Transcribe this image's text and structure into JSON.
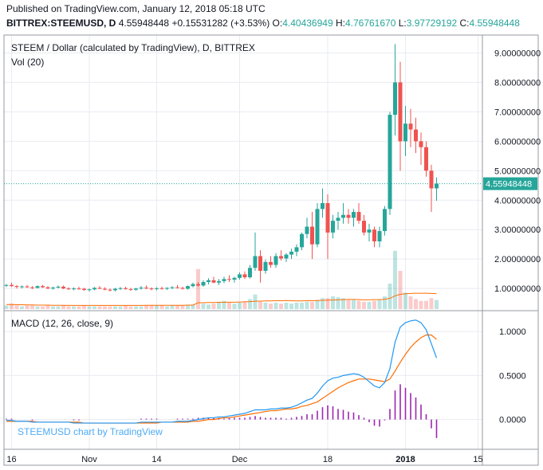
{
  "header": {
    "published": "Published on TradingView.com, January 12, 2018 05:18 UTC",
    "symbol": "BITTREX:STEEMUSD, D",
    "last": "4.55948448",
    "change": "+0.15531282 (+3.53%)",
    "open_label": "O:",
    "open": "4.40436949",
    "high_label": "H:",
    "high": "4.76761670",
    "low_label": "L:",
    "low": "3.97729192",
    "close_label": "C:",
    "close": "4.55948448"
  },
  "watermark": "STEEMUSD chart by TradingView",
  "colors": {
    "up": "#26a69a",
    "down": "#ef5350",
    "macd": "#2196f3",
    "signal": "#ff6d00",
    "hist": "#9c27b0"
  },
  "chart_data": [
    {
      "type": "candlestick",
      "title": "STEEM / Dollar (calculated by TradingView), D, BITTREX",
      "volume_label": "Vol (20)",
      "ylim": [
        0.3,
        9.5
      ],
      "y_ticks": [
        "9.00000000",
        "8.00000000",
        "7.00000000",
        "6.00000000",
        "5.00000000",
        "4.00000000",
        "3.00000000",
        "2.00000000",
        "1.00000000"
      ],
      "y_tick_values": [
        9,
        8,
        7,
        6,
        5,
        4,
        3,
        2,
        1
      ],
      "last_price": 4.55948448,
      "last_price_label": "4.55948448",
      "x_ticks": [
        "16",
        "Nov",
        "14",
        "Dec",
        "18",
        "2018",
        "15"
      ],
      "x_tick_index": [
        1,
        16,
        29,
        45,
        62,
        77,
        91
      ],
      "candles": [
        [
          1.1,
          1.15,
          1.05,
          1.12
        ],
        [
          1.12,
          1.2,
          1.05,
          1.08
        ],
        [
          1.08,
          1.12,
          1.0,
          1.05
        ],
        [
          1.05,
          1.1,
          1.0,
          1.07
        ],
        [
          1.07,
          1.12,
          1.02,
          1.04
        ],
        [
          1.04,
          1.08,
          0.98,
          1.02
        ],
        [
          1.02,
          1.1,
          1.0,
          1.08
        ],
        [
          1.08,
          1.12,
          1.02,
          1.04
        ],
        [
          1.04,
          1.08,
          0.98,
          1.0
        ],
        [
          1.0,
          1.06,
          0.96,
          1.03
        ],
        [
          1.03,
          1.1,
          1.0,
          1.06
        ],
        [
          1.06,
          1.1,
          0.98,
          1.0
        ],
        [
          1.0,
          1.04,
          0.95,
          0.98
        ],
        [
          0.98,
          1.04,
          0.94,
          1.0
        ],
        [
          1.0,
          1.06,
          0.96,
          0.99
        ],
        [
          0.99,
          1.02,
          0.92,
          0.95
        ],
        [
          0.95,
          1.0,
          0.9,
          0.97
        ],
        [
          0.97,
          1.05,
          0.94,
          1.02
        ],
        [
          1.02,
          1.08,
          0.98,
          0.99
        ],
        [
          0.99,
          1.04,
          0.94,
          0.96
        ],
        [
          0.96,
          1.0,
          0.9,
          0.94
        ],
        [
          0.94,
          1.02,
          0.9,
          0.99
        ],
        [
          0.99,
          1.05,
          0.95,
          1.01
        ],
        [
          1.01,
          1.06,
          0.96,
          0.98
        ],
        [
          0.98,
          1.02,
          0.92,
          0.96
        ],
        [
          0.96,
          1.02,
          0.92,
          1.0
        ],
        [
          1.0,
          1.08,
          0.96,
          1.03
        ],
        [
          1.03,
          1.1,
          0.98,
          1.0
        ],
        [
          1.0,
          1.04,
          0.94,
          0.98
        ],
        [
          0.98,
          1.04,
          0.94,
          1.01
        ],
        [
          1.01,
          1.06,
          0.96,
          0.99
        ],
        [
          0.99,
          1.04,
          0.95,
          1.02
        ],
        [
          1.02,
          1.08,
          0.98,
          1.04
        ],
        [
          1.04,
          1.12,
          1.0,
          1.02
        ],
        [
          1.02,
          1.06,
          0.96,
          0.99
        ],
        [
          0.99,
          1.1,
          0.96,
          1.08
        ],
        [
          1.08,
          1.2,
          1.04,
          1.15
        ],
        [
          1.15,
          1.22,
          1.06,
          1.1
        ],
        [
          1.1,
          1.28,
          1.06,
          1.22
        ],
        [
          1.22,
          1.35,
          1.14,
          1.28
        ],
        [
          1.28,
          1.4,
          1.18,
          1.2
        ],
        [
          1.2,
          1.32,
          1.12,
          1.25
        ],
        [
          1.25,
          1.4,
          1.18,
          1.32
        ],
        [
          1.32,
          1.45,
          1.22,
          1.3
        ],
        [
          1.3,
          1.4,
          1.2,
          1.36
        ],
        [
          1.36,
          1.55,
          1.3,
          1.48
        ],
        [
          1.48,
          1.58,
          1.32,
          1.38
        ],
        [
          1.38,
          1.8,
          1.34,
          1.7
        ],
        [
          1.7,
          2.9,
          1.6,
          2.1
        ],
        [
          2.1,
          2.3,
          1.2,
          1.6
        ],
        [
          1.6,
          1.98,
          1.5,
          1.9
        ],
        [
          1.9,
          2.1,
          1.7,
          1.8
        ],
        [
          1.8,
          2.2,
          1.7,
          2.1
        ],
        [
          2.1,
          2.3,
          1.95,
          2.02
        ],
        [
          2.02,
          2.2,
          1.9,
          2.15
        ],
        [
          2.15,
          2.35,
          2.0,
          2.25
        ],
        [
          2.25,
          2.5,
          2.1,
          2.4
        ],
        [
          2.4,
          2.9,
          2.3,
          2.85
        ],
        [
          2.85,
          3.4,
          2.7,
          3.1
        ],
        [
          3.1,
          3.6,
          2.0,
          2.5
        ],
        [
          2.5,
          3.9,
          2.4,
          3.7
        ],
        [
          3.7,
          4.4,
          3.4,
          3.9
        ],
        [
          3.9,
          4.2,
          2.0,
          2.9
        ],
        [
          2.9,
          3.5,
          2.7,
          3.3
        ],
        [
          3.3,
          3.6,
          3.0,
          3.4
        ],
        [
          3.4,
          3.9,
          3.2,
          3.5
        ],
        [
          3.5,
          3.7,
          3.2,
          3.4
        ],
        [
          3.4,
          3.7,
          3.1,
          3.6
        ],
        [
          3.6,
          3.9,
          3.2,
          3.3
        ],
        [
          3.3,
          3.5,
          2.8,
          2.9
        ],
        [
          2.9,
          3.2,
          2.6,
          3.0
        ],
        [
          3.0,
          3.1,
          2.4,
          2.6
        ],
        [
          2.6,
          3.1,
          2.4,
          2.95
        ],
        [
          2.95,
          3.8,
          2.8,
          3.7
        ],
        [
          3.7,
          7.0,
          3.5,
          6.9
        ],
        [
          6.9,
          9.3,
          6.2,
          8.0
        ],
        [
          8.0,
          8.7,
          5.0,
          6.0
        ],
        [
          6.0,
          7.2,
          5.5,
          6.6
        ],
        [
          6.6,
          7.1,
          5.8,
          6.4
        ],
        [
          6.4,
          6.8,
          5.6,
          6.0
        ],
        [
          6.0,
          6.3,
          5.2,
          5.8
        ],
        [
          5.8,
          6.0,
          4.8,
          5.0
        ],
        [
          5.0,
          5.2,
          3.6,
          4.4
        ],
        [
          4.4,
          4.77,
          3.98,
          4.56
        ]
      ],
      "volume": [
        2,
        3,
        2,
        1.5,
        2,
        2,
        1.5,
        1.5,
        2,
        1.5,
        1.5,
        2,
        1.5,
        1.5,
        1.5,
        2,
        1.5,
        1.5,
        1.5,
        1.5,
        1.5,
        1.5,
        1.5,
        2,
        1.5,
        1.5,
        1.5,
        2,
        2,
        2,
        2,
        1.5,
        2,
        2,
        2,
        2,
        2.5,
        22,
        3,
        2.5,
        3,
        4,
        4.5,
        3.5,
        3,
        3.5,
        4,
        5.5,
        8,
        4,
        3.5,
        3,
        3.5,
        3,
        3.5,
        3,
        3.5,
        3.5,
        4,
        4,
        5,
        6,
        6,
        7,
        6.5,
        6,
        5,
        5,
        4.5,
        4,
        4,
        4.5,
        5,
        7,
        14,
        32,
        21,
        9,
        7,
        5.5,
        4.5,
        4.5,
        6,
        5
      ],
      "volume_ma": [
        2.5,
        2.5,
        2.4,
        2.4,
        2.3,
        2.3,
        2.2,
        2.2,
        2.2,
        2.1,
        2.1,
        2.1,
        2,
        2,
        2,
        2,
        2,
        2,
        2,
        2,
        2,
        2,
        2,
        2,
        2,
        2,
        2,
        2.1,
        2.1,
        2.1,
        2.1,
        2.1,
        2.1,
        2.1,
        2.1,
        2.2,
        2.2,
        3.5,
        3.5,
        3.6,
        3.6,
        3.7,
        3.8,
        3.8,
        3.8,
        3.9,
        4,
        4.1,
        4.3,
        4.4,
        4.5,
        4.5,
        4.6,
        4.6,
        4.7,
        4.6,
        4.5,
        4.5,
        4.6,
        4.6,
        4.7,
        4.8,
        4.9,
        5,
        5.1,
        5.2,
        5.3,
        5.3,
        5.2,
        5.1,
        5.1,
        5.2,
        5.2,
        5.4,
        5.9,
        7.3,
        8.1,
        8.4,
        8.6,
        8.7,
        8.7,
        8.7,
        8.6,
        8.5
      ]
    },
    {
      "type": "line",
      "title": "MACD (12, 26, close, 9)",
      "ylim": [
        -0.32,
        1.2
      ],
      "y_ticks": [
        "1.0000",
        "0.5000",
        "0.0000"
      ],
      "y_tick_values": [
        1,
        0.5,
        0
      ],
      "series": [
        {
          "values": [
            -0.01,
            -0.01,
            -0.02,
            -0.02,
            -0.02,
            -0.03,
            -0.03,
            -0.03,
            -0.03,
            -0.03,
            -0.03,
            -0.03,
            -0.03,
            -0.04,
            -0.04,
            -0.04,
            -0.04,
            -0.04,
            -0.04,
            -0.04,
            -0.04,
            -0.04,
            -0.04,
            -0.04,
            -0.04,
            -0.04,
            -0.03,
            -0.03,
            -0.03,
            -0.03,
            -0.03,
            -0.03,
            -0.03,
            -0.02,
            -0.02,
            -0.02,
            -0.01,
            0.0,
            0.01,
            0.02,
            0.02,
            0.03,
            0.03,
            0.04,
            0.05,
            0.06,
            0.07,
            0.09,
            0.11,
            0.11,
            0.11,
            0.12,
            0.12,
            0.13,
            0.13,
            0.14,
            0.16,
            0.19,
            0.22,
            0.24,
            0.3,
            0.38,
            0.44,
            0.47,
            0.48,
            0.5,
            0.51,
            0.52,
            0.51,
            0.48,
            0.43,
            0.38,
            0.36,
            0.42,
            0.58,
            0.88,
            1.05,
            1.1,
            1.12,
            1.13,
            1.1,
            1.02,
            0.86,
            0.7
          ]
        },
        {
          "values": [
            -0.02,
            -0.02,
            -0.02,
            -0.02,
            -0.02,
            -0.02,
            -0.03,
            -0.03,
            -0.03,
            -0.03,
            -0.03,
            -0.03,
            -0.03,
            -0.03,
            -0.03,
            -0.04,
            -0.04,
            -0.04,
            -0.04,
            -0.04,
            -0.04,
            -0.04,
            -0.04,
            -0.04,
            -0.04,
            -0.04,
            -0.04,
            -0.04,
            -0.04,
            -0.04,
            -0.03,
            -0.03,
            -0.03,
            -0.03,
            -0.03,
            -0.03,
            -0.02,
            -0.02,
            -0.01,
            0.0,
            0.0,
            0.01,
            0.02,
            0.02,
            0.03,
            0.04,
            0.05,
            0.06,
            0.07,
            0.08,
            0.09,
            0.1,
            0.1,
            0.11,
            0.12,
            0.12,
            0.13,
            0.15,
            0.16,
            0.18,
            0.2,
            0.24,
            0.28,
            0.32,
            0.36,
            0.39,
            0.42,
            0.44,
            0.46,
            0.46,
            0.46,
            0.45,
            0.44,
            0.43,
            0.46,
            0.55,
            0.65,
            0.74,
            0.82,
            0.88,
            0.93,
            0.96,
            0.96,
            0.91
          ]
        },
        {
          "values": [
            0.01,
            0.01,
            0.0,
            0.0,
            0.0,
            -0.01,
            0.0,
            0.0,
            0.0,
            0.0,
            0.0,
            0.0,
            0.0,
            -0.01,
            -0.01,
            0.0,
            0.0,
            0.0,
            0.0,
            0.0,
            0.0,
            0.0,
            0.0,
            0.0,
            0.0,
            0.0,
            0.01,
            0.01,
            0.01,
            0.01,
            0.0,
            0.0,
            0.0,
            0.01,
            0.01,
            0.01,
            0.01,
            0.02,
            0.02,
            0.02,
            0.02,
            0.02,
            0.01,
            0.02,
            0.02,
            0.02,
            0.02,
            0.03,
            0.04,
            0.03,
            0.02,
            0.02,
            0.02,
            0.02,
            0.01,
            0.02,
            0.03,
            0.04,
            0.06,
            0.06,
            0.1,
            0.14,
            0.16,
            0.15,
            0.12,
            0.11,
            0.09,
            0.08,
            0.05,
            0.02,
            -0.03,
            -0.07,
            -0.08,
            -0.01,
            0.12,
            0.33,
            0.4,
            0.36,
            0.3,
            0.25,
            0.17,
            0.06,
            -0.1,
            -0.21
          ]
        }
      ]
    }
  ]
}
